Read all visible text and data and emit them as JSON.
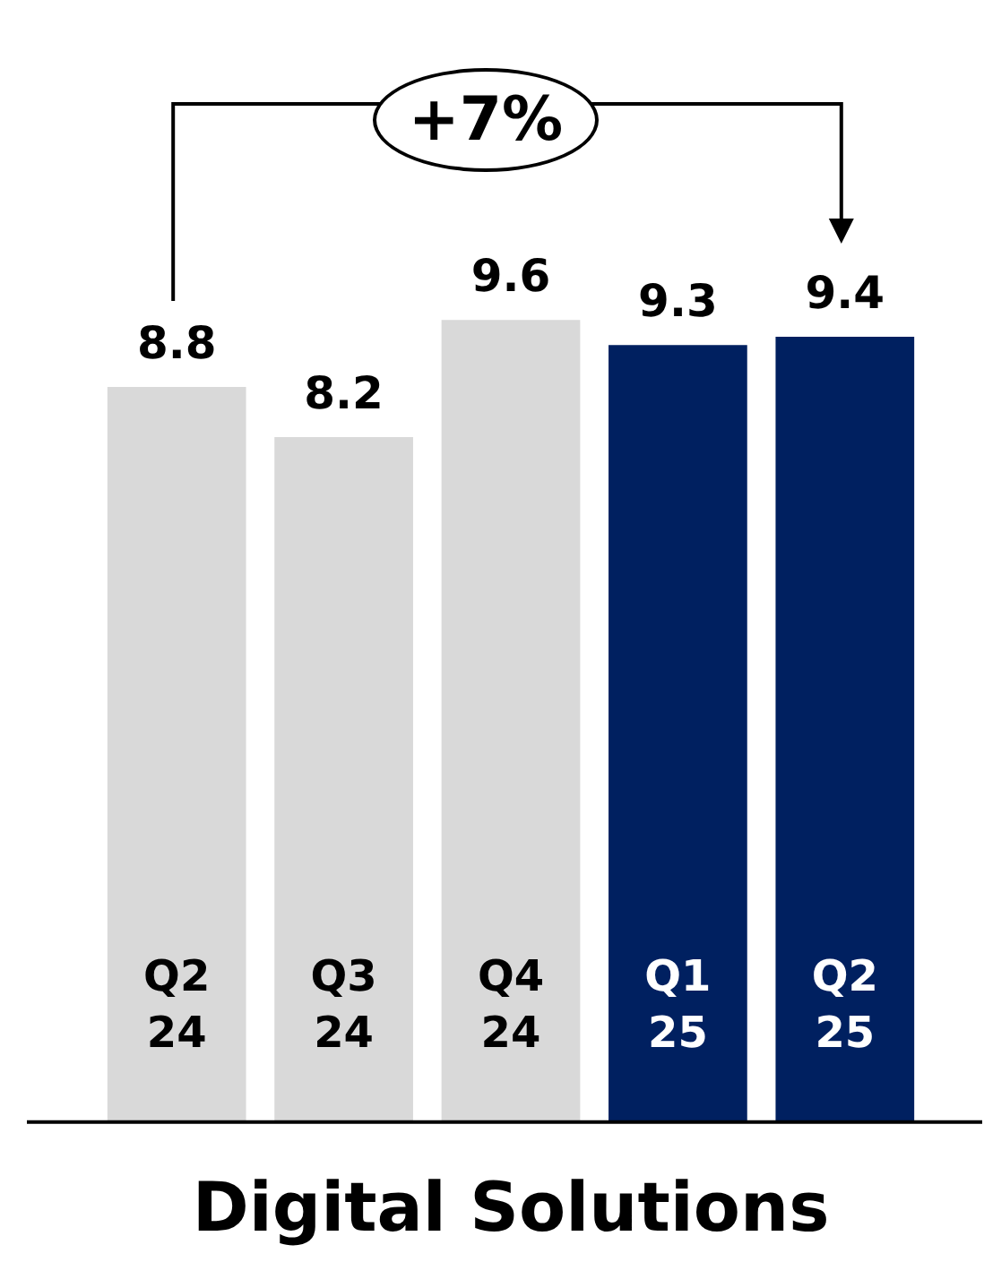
{
  "chart_data": {
    "type": "bar",
    "title": "Digital Solutions",
    "categories": [
      "Q2 24",
      "Q3 24",
      "Q4 24",
      "Q1 25",
      "Q2 25"
    ],
    "values": [
      8.8,
      8.2,
      9.6,
      9.3,
      9.4
    ],
    "colors": [
      "#d9d9d9",
      "#d9d9d9",
      "#d9d9d9",
      "#002060",
      "#002060"
    ],
    "data_labels": true,
    "grid": false,
    "legend": false,
    "tick_labels": "x",
    "annotations": [
      "+7%"
    ]
  }
}
